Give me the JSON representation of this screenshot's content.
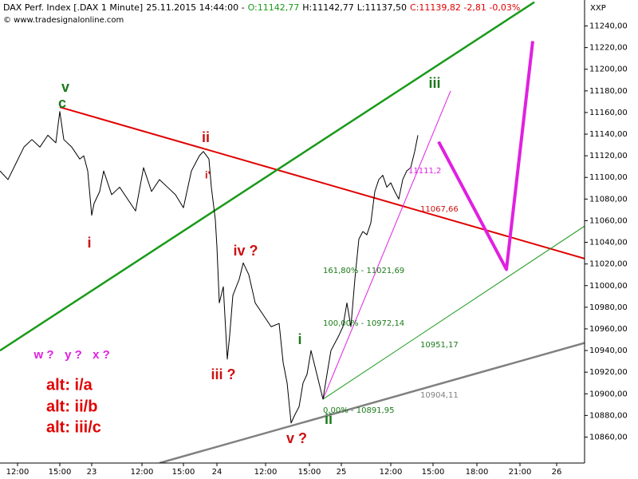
{
  "header": {
    "instrument": "DAX Perf. Index [.DAX  1 Minute]",
    "timestamp": "25.11.2015 14:44:00 -",
    "open": "O:11142,77",
    "high": "H:11142,77",
    "low": "L:11137,50",
    "close": "C:11139,82 -2,81 -0,03%",
    "copyright": "© www.tradesignalonline.com",
    "axis_symbol": "XXP"
  },
  "chart_data": {
    "type": "line",
    "xlim": [
      0,
      733
    ],
    "ylim": [
      10836,
      11264
    ],
    "grid": true,
    "xticks": [
      {
        "value": 22,
        "label": "12:00"
      },
      {
        "value": 75,
        "label": "15:00"
      },
      {
        "value": 115,
        "label": "23"
      },
      {
        "value": 178,
        "label": "12:00"
      },
      {
        "value": 230,
        "label": "15:00"
      },
      {
        "value": 272,
        "label": "24"
      },
      {
        "value": 333,
        "label": "12:00"
      },
      {
        "value": 388,
        "label": "15:00"
      },
      {
        "value": 428,
        "label": "25"
      },
      {
        "value": 490,
        "label": "12:00"
      },
      {
        "value": 543,
        "label": "15:00"
      },
      {
        "value": 598,
        "label": "18:00"
      },
      {
        "value": 652,
        "label": "21:00"
      },
      {
        "value": 698,
        "label": "26"
      }
    ],
    "yticks": [
      {
        "value": 10860,
        "label": "10860,00"
      },
      {
        "value": 10880,
        "label": "10880,00"
      },
      {
        "value": 10900,
        "label": "10900,00"
      },
      {
        "value": 10920,
        "label": "10920,00"
      },
      {
        "value": 10940,
        "label": "10940,00"
      },
      {
        "value": 10960,
        "label": "10960,00"
      },
      {
        "value": 10980,
        "label": "10980,00"
      },
      {
        "value": 11000,
        "label": "11000,00"
      },
      {
        "value": 11020,
        "label": "11020,00"
      },
      {
        "value": 11040,
        "label": "11040,00"
      },
      {
        "value": 11060,
        "label": "11060,00"
      },
      {
        "value": 11080,
        "label": "11080,00"
      },
      {
        "value": 11100,
        "label": "11100,00"
      },
      {
        "value": 11120,
        "label": "11120,00"
      },
      {
        "value": 11140,
        "label": "11140,00"
      },
      {
        "value": 11160,
        "label": "11160,00"
      },
      {
        "value": 11180,
        "label": "11180,00"
      },
      {
        "value": 11200,
        "label": "11200,00"
      },
      {
        "value": 11220,
        "label": "11220,00"
      },
      {
        "value": 11240,
        "label": "11240,00"
      }
    ],
    "series": [
      {
        "color": "#000000",
        "x": [
          0,
          10,
          20,
          30,
          40,
          50,
          60,
          70,
          75,
          80,
          90,
          100,
          105,
          110,
          115,
          118,
          125,
          130,
          140,
          150,
          160,
          170,
          180,
          190,
          200,
          210,
          220,
          230,
          240,
          250,
          255,
          262,
          265,
          270,
          272,
          275,
          280,
          285,
          288,
          292,
          300,
          305,
          312,
          320,
          330,
          340,
          350,
          355,
          360,
          365,
          370,
          375,
          380,
          385,
          390,
          395,
          400,
          405,
          410,
          415,
          420,
          425,
          430,
          435,
          440,
          445,
          450,
          455,
          460,
          465,
          470,
          475,
          480,
          485,
          490,
          495,
          500,
          505,
          510,
          515,
          520,
          524
        ],
        "values": [
          11106,
          11098,
          11113,
          11128,
          11135,
          11128,
          11139,
          11132,
          11161,
          11135,
          11128,
          11117,
          11120,
          11106,
          11065,
          11076,
          11087,
          11106,
          11084,
          11091,
          11080,
          11069,
          11109,
          11087,
          11098,
          11091,
          11084,
          11072,
          11106,
          11120,
          11124,
          11117,
          11091,
          11061,
          11036,
          10984,
          10999,
          10932,
          10954,
          10991,
          11006,
          11021,
          11010,
          10984,
          10973,
          10962,
          10965,
          10929,
          10910,
          10873,
          10881,
          10888,
          10910,
          10918,
          10940,
          10925,
          10910,
          10895,
          10918,
          10940,
          10947,
          10954,
          10962,
          10984,
          10962,
          11006,
          11043,
          11050,
          11047,
          11058,
          11087,
          11098,
          11102,
          11091,
          11095,
          11087,
          11080,
          11098,
          11106,
          11109,
          11124,
          11139
        ]
      }
    ],
    "lines": [
      {
        "color": "#e00000",
        "width": 2,
        "x": [
          75,
          733
        ],
        "values": [
          11165,
          11025
        ]
      },
      {
        "color": "#1a9a1a",
        "width": 2.5,
        "x": [
          0,
          670
        ],
        "values": [
          10940,
          11262
        ]
      },
      {
        "color": "#1a9a1a",
        "width": 1,
        "x": [
          405,
          733
        ],
        "values": [
          10895,
          11055
        ]
      },
      {
        "color": "#808080",
        "width": 2.5,
        "x": [
          200,
          733
        ],
        "values": [
          10836,
          10947
        ]
      },
      {
        "color": "#e020e0",
        "width": 1,
        "x": [
          405,
          565
        ],
        "values": [
          10895,
          11180
        ]
      },
      {
        "color": "#e020e0",
        "width": 4,
        "x": [
          550,
          635,
          668
        ],
        "values": [
          11133,
          11015,
          11226
        ]
      }
    ],
    "annotations": [
      {
        "text": "v",
        "color": "#1a7a1a"
      },
      {
        "text": "c",
        "color": "#1a7a1a"
      },
      {
        "text": "i",
        "color": "#cc1010"
      },
      {
        "text": "ii",
        "color": "#cc1010"
      },
      {
        "text": "i'",
        "color": "#cc1010"
      },
      {
        "text": "iv ?",
        "color": "#cc1010"
      },
      {
        "text": "iii ?",
        "color": "#cc1010"
      },
      {
        "text": "v ?",
        "color": "#cc1010"
      },
      {
        "text": "i",
        "color": "#1a7a1a"
      },
      {
        "text": "ii",
        "color": "#1a7a1a"
      },
      {
        "text": "iii",
        "color": "#1a7a1a"
      },
      {
        "text": "w ?",
        "color": "#e020e0"
      },
      {
        "text": "y ?",
        "color": "#e020e0"
      },
      {
        "text": "x ?",
        "color": "#e020e0"
      },
      {
        "text": "alt: i/a",
        "color": "#e00000"
      },
      {
        "text": "alt: ii/b",
        "color": "#e00000"
      },
      {
        "text": "alt: iii/c",
        "color": "#e00000"
      },
      {
        "text": "11111,2",
        "color": "#e020e0"
      },
      {
        "text": "11067,66",
        "color": "#cc1010"
      },
      {
        "text": "161,80% - 11021,69",
        "color": "#1a7a1a"
      },
      {
        "text": "100,00% - 10972,14",
        "color": "#1a7a1a"
      },
      {
        "text": "0,00% - 10891,95",
        "color": "#1a7a1a"
      },
      {
        "text": "10951,17",
        "color": "#1a7a1a"
      },
      {
        "text": "10904,11",
        "color": "#808080"
      }
    ]
  }
}
